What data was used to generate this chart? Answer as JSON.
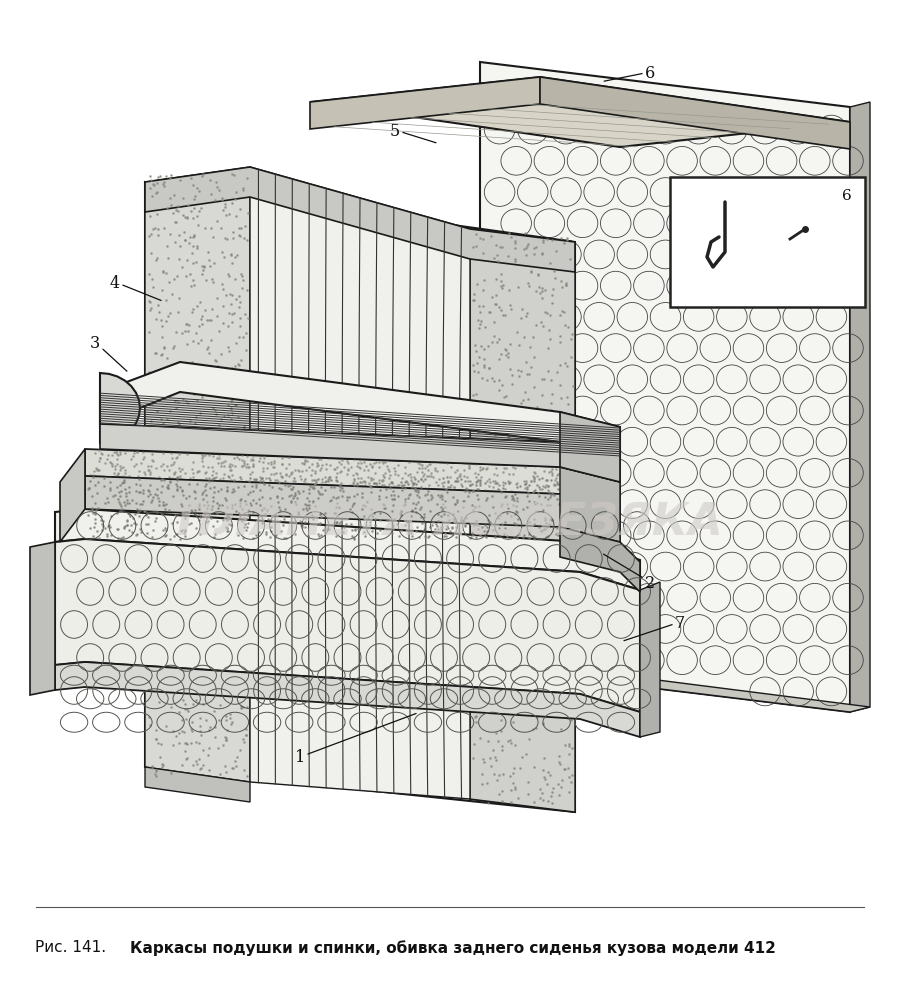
{
  "caption_prefix": "Рис. 141.",
  "caption_bold": "Каркасы подушки и спинки, обивка заднего сиденья кузова модели 412",
  "watermark": "ПЛАНЕТА ЖЕЛЕЗЯКА",
  "bg_color": "#ffffff",
  "figure_width": 9.0,
  "figure_height": 10.03,
  "watermark_color": "#d0ccc8",
  "line_color": "#1a1a1a",
  "foam_color": "#e8e8e4",
  "dark_foam_color": "#c0bdb8",
  "board_color": "#dddbd5",
  "bubble_color": "#444444",
  "stripe_color": "#333333"
}
